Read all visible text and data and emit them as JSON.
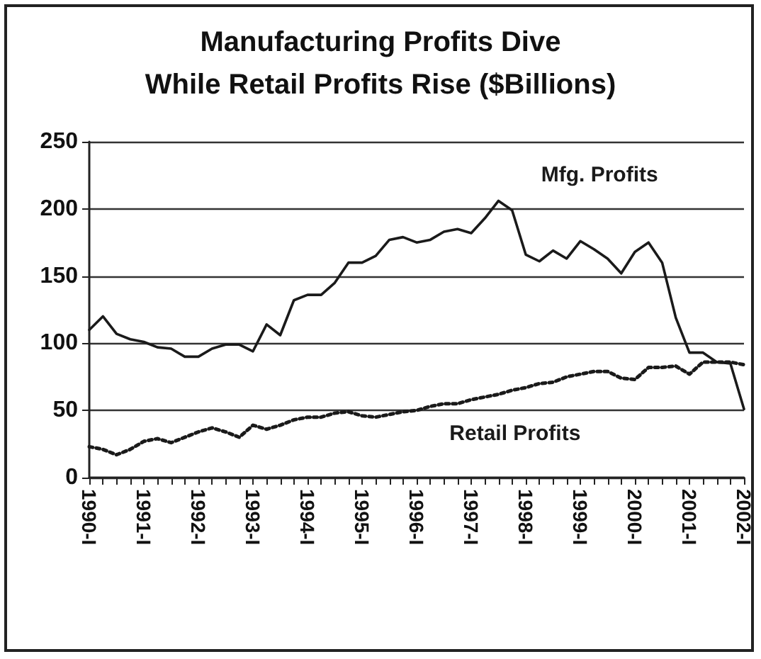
{
  "chart_data": {
    "type": "line",
    "title": "Manufacturing Profits Dive\nWhile Retail Profits Rise ($Billions)",
    "categories": [
      "1990-I",
      null,
      null,
      null,
      "1991-I",
      null,
      null,
      null,
      "1992-I",
      null,
      null,
      null,
      "1993-I",
      null,
      null,
      null,
      "1994-I",
      null,
      null,
      null,
      "1995-I",
      null,
      null,
      null,
      "1996-I",
      null,
      null,
      null,
      "1997-I",
      null,
      null,
      null,
      "1998-I",
      null,
      null,
      null,
      "1999-I",
      null,
      null,
      null,
      "2000-I",
      null,
      null,
      null,
      "2001-I",
      null,
      null,
      null,
      "2002-I"
    ],
    "series": [
      {
        "name": "Mfg. Profits",
        "color": "#1a1a1a",
        "line_style": "solid",
        "values": [
          110,
          120,
          107,
          103,
          101,
          97,
          96,
          90,
          90,
          96,
          99,
          99,
          94,
          114,
          106,
          132,
          136,
          136,
          145,
          160,
          160,
          165,
          177,
          179,
          175,
          177,
          183,
          185,
          182,
          193,
          206,
          199,
          166,
          161,
          169,
          163,
          176,
          170,
          163,
          152,
          168,
          175,
          160,
          119,
          93,
          93,
          86,
          85,
          51
        ]
      },
      {
        "name": "Retail Profits",
        "color": "#1a1a1a",
        "line_style": "dotted",
        "values": [
          23,
          21,
          17,
          21,
          27,
          29,
          26,
          30,
          34,
          37,
          34,
          30,
          39,
          36,
          39,
          43,
          45,
          45,
          48,
          49,
          46,
          45,
          47,
          49,
          50,
          53,
          55,
          55,
          58,
          60,
          62,
          65,
          67,
          70,
          71,
          75,
          77,
          79,
          79,
          74,
          73,
          82,
          82,
          83,
          77,
          86,
          86,
          86,
          84
        ]
      }
    ],
    "ylim": [
      0,
      250
    ],
    "yticks": [
      0,
      50,
      100,
      150,
      200,
      250
    ],
    "grid": "y",
    "legend": false,
    "marker": "none"
  }
}
